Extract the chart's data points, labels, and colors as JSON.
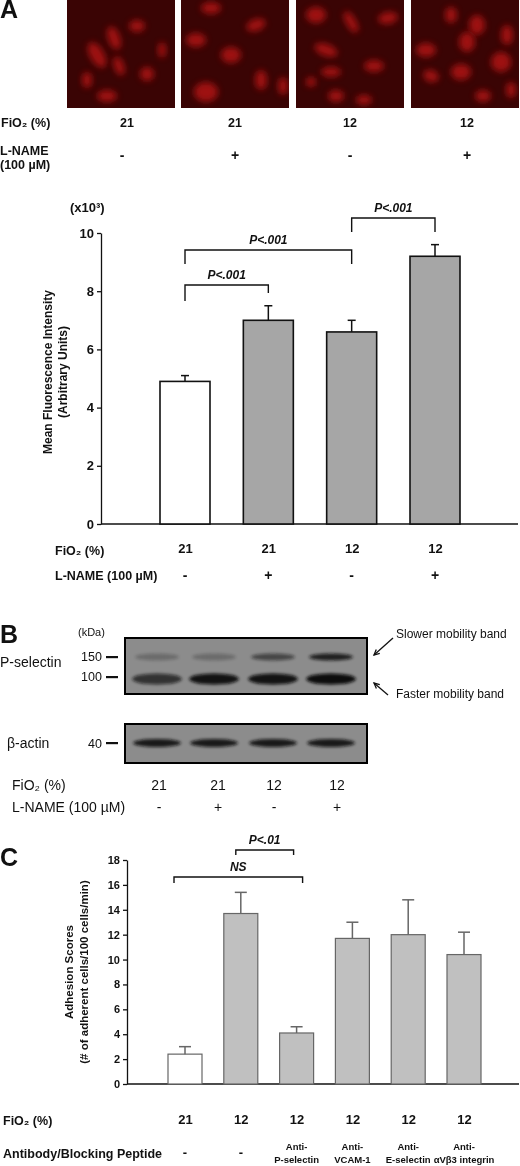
{
  "chart_data": [
    {
      "type": "other",
      "title": "A",
      "annotations": [
        "FiO₂ (%)",
        "21",
        "21",
        "12",
        "12",
        "L-NAME\n(100 µM)",
        "-",
        "+",
        "-",
        "+"
      ]
    },
    {
      "type": "bar",
      "categories": [
        "21",
        "21",
        "12",
        "12"
      ],
      "values": [
        4.9,
        7.0,
        6.6,
        9.2
      ],
      "errors": [
        0.2,
        0.5,
        0.4,
        0.4
      ],
      "colors": [
        "#ffffff",
        "#a6a6a6",
        "#a6a6a6",
        "#a6a6a6"
      ],
      "ylim": [
        0,
        10
      ],
      "yticks": [
        0,
        2,
        4,
        6,
        8,
        10
      ],
      "xlabel": "FiO₂ (%)",
      "ylabel": "Mean Fluorescence Intensity\n(Arbitrary Units)",
      "annotations": [
        "(x10³)",
        "P<.001",
        "P<.001",
        "P<.001",
        "L-NAME (100 µM)",
        "-",
        "+",
        "-",
        "+"
      ]
    },
    {
      "type": "other",
      "title": "B",
      "annotations": [
        "(kDa)",
        "P-selectin",
        "150",
        "100",
        "β-actin",
        "40",
        "Slower mobility band",
        "Faster mobility band",
        "FiO₂ (%)",
        "21",
        "21",
        "12",
        "12",
        "L-NAME (100 µM)",
        "-",
        "+",
        "-",
        "+"
      ]
    },
    {
      "type": "bar",
      "title": "C",
      "categories": [
        "21",
        "12",
        "12",
        "12",
        "12",
        "12"
      ],
      "values": [
        2.4,
        13.7,
        4.1,
        11.7,
        12.0,
        10.4
      ],
      "errors": [
        0.6,
        1.7,
        0.5,
        1.3,
        2.8,
        1.8
      ],
      "colors": [
        "#ffffff",
        "#c0c0c0",
        "#c0c0c0",
        "#c0c0c0",
        "#c0c0c0",
        "#c0c0c0"
      ],
      "ylim": [
        0,
        18
      ],
      "yticks": [
        0,
        2,
        4,
        6,
        8,
        10,
        12,
        14,
        16,
        18
      ],
      "xlabel": "FiO₂ (%)",
      "ylabel": "Adhesion Scores\n(# of adherent cells/100 cells/min)",
      "annotations": [
        "NS",
        "P<.01",
        "Antibody/Blocking Peptide",
        "-",
        "-",
        "Anti-\nP-selectin",
        "Anti-\nVCAM-1",
        "Anti-\nE-selectin",
        "Anti-\nαVβ3 integrin"
      ]
    }
  ]
}
